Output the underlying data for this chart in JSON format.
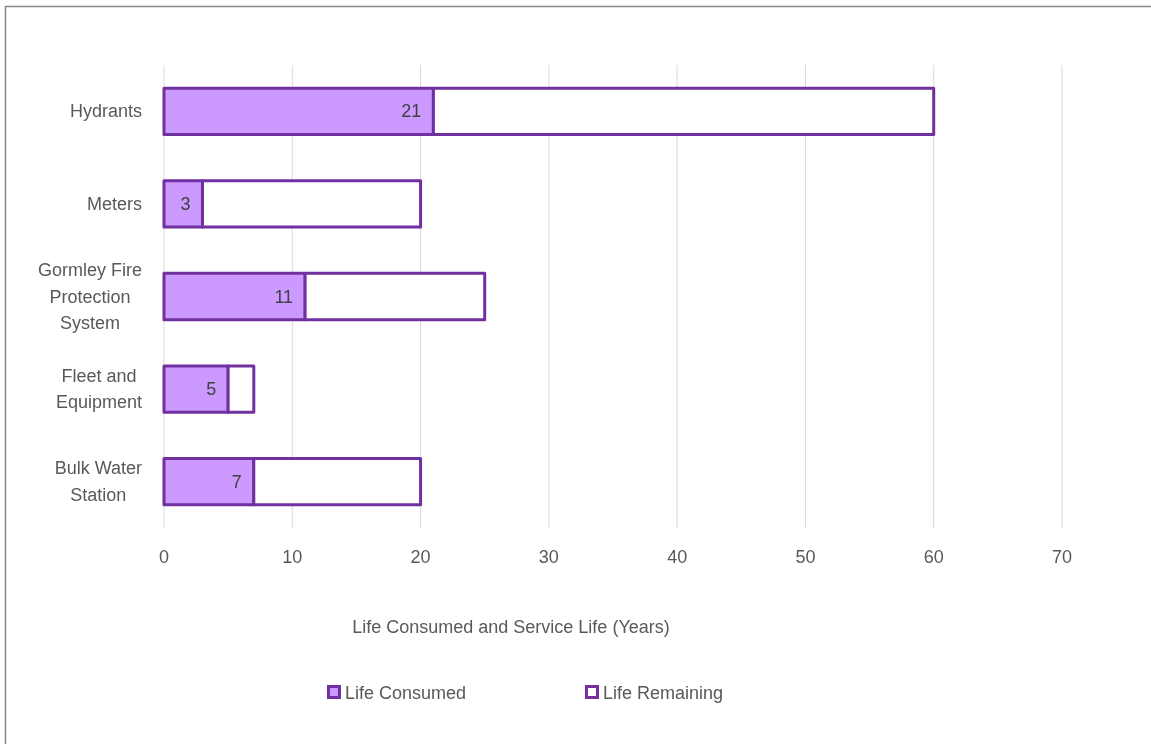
{
  "chart_data": {
    "type": "bar",
    "orientation": "horizontal",
    "stacked": true,
    "categories": [
      "Hydrants",
      "Meters",
      "Gormley Fire Protection System",
      "Fleet and Equipment",
      "Bulk Water Station"
    ],
    "series": [
      {
        "name": "Life Consumed",
        "color": "#cc99ff",
        "values": [
          21,
          3,
          11,
          5,
          7
        ],
        "value_labels": [
          "21",
          "3",
          "11",
          "5",
          "7"
        ]
      },
      {
        "name": "Life Remaining",
        "color": "#ffffff",
        "values": [
          39,
          17,
          14,
          2,
          13
        ]
      }
    ],
    "xlabel": "Life Consumed and Service Life (Years)",
    "xlim": [
      0,
      70
    ],
    "xticks": [
      0,
      10,
      20,
      30,
      40,
      50,
      60,
      70
    ],
    "grid": "x",
    "legend": "bottom"
  }
}
